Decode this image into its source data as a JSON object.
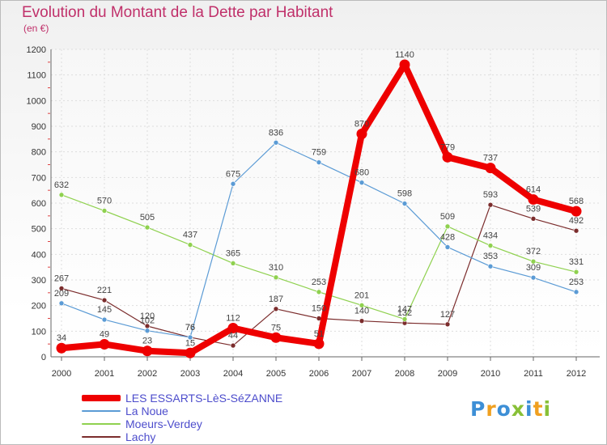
{
  "title": "Evolution du Montant de la Dette par Habitant",
  "unit": "(en €)",
  "logo": "Proxiti",
  "chart_data": {
    "type": "line",
    "x": [
      "2000",
      "2001",
      "2002",
      "2003",
      "2004",
      "2005",
      "2006",
      "2007",
      "2008",
      "2009",
      "2010",
      "2011",
      "2012"
    ],
    "ylim": [
      0,
      1200
    ],
    "yticks": [
      0,
      100,
      200,
      300,
      400,
      500,
      600,
      700,
      800,
      900,
      1000,
      1100,
      1200
    ],
    "grid": true,
    "legend_position": "bottom-left",
    "series": [
      {
        "name": "LES ESSARTS-LèS-SéZANNE",
        "color": "#ee0000",
        "values": [
          34,
          49,
          23,
          15,
          112,
          75,
          51,
          870,
          1140,
          779,
          737,
          614,
          568
        ]
      },
      {
        "name": "La Noue",
        "color": "#5b9bd5",
        "values": [
          209,
          145,
          102,
          76,
          675,
          836,
          759,
          680,
          598,
          428,
          353,
          309,
          253
        ]
      },
      {
        "name": "Moeurs-Verdey",
        "color": "#8fd14f",
        "values": [
          632,
          570,
          505,
          437,
          365,
          310,
          253,
          201,
          147,
          509,
          434,
          372,
          331
        ]
      },
      {
        "name": "Lachy",
        "color": "#7b2c2c",
        "values": [
          267,
          221,
          120,
          76,
          44,
          187,
          150,
          140,
          132,
          127,
          593,
          539,
          492
        ]
      }
    ]
  }
}
